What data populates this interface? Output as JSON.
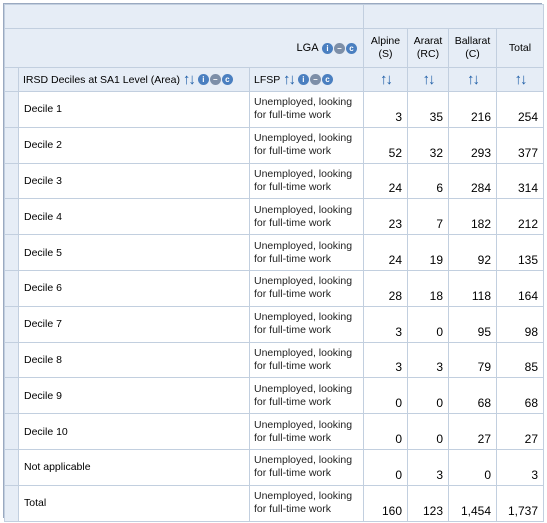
{
  "header": {
    "lga_label": "LGA",
    "row_dim_label": "IRSD Deciles at SA1 Level (Area)",
    "col_dim_label": "LFSP",
    "columns": [
      "Alpine (S)",
      "Ararat (RC)",
      "Ballarat (C)",
      "Total"
    ]
  },
  "icons": {
    "info": "i",
    "collapse": "–",
    "clear": "c",
    "sort_arrows": "↑↓"
  },
  "rows": [
    {
      "label": "Decile 1",
      "lfsp": "Unemployed, looking for full-time work",
      "values": [
        "3",
        "35",
        "216",
        "254"
      ]
    },
    {
      "label": "Decile 2",
      "lfsp": "Unemployed, looking for full-time work",
      "values": [
        "52",
        "32",
        "293",
        "377"
      ]
    },
    {
      "label": "Decile 3",
      "lfsp": "Unemployed, looking for full-time work",
      "values": [
        "24",
        "6",
        "284",
        "314"
      ]
    },
    {
      "label": "Decile 4",
      "lfsp": "Unemployed, looking for full-time work",
      "values": [
        "23",
        "7",
        "182",
        "212"
      ]
    },
    {
      "label": "Decile 5",
      "lfsp": "Unemployed, looking for full-time work",
      "values": [
        "24",
        "19",
        "92",
        "135"
      ]
    },
    {
      "label": "Decile 6",
      "lfsp": "Unemployed, looking for full-time work",
      "values": [
        "28",
        "18",
        "118",
        "164"
      ]
    },
    {
      "label": "Decile 7",
      "lfsp": "Unemployed, looking for full-time work",
      "values": [
        "3",
        "0",
        "95",
        "98"
      ]
    },
    {
      "label": "Decile 8",
      "lfsp": "Unemployed, looking for full-time work",
      "values": [
        "3",
        "3",
        "79",
        "85"
      ]
    },
    {
      "label": "Decile 9",
      "lfsp": "Unemployed, looking for full-time work",
      "values": [
        "0",
        "0",
        "68",
        "68"
      ]
    },
    {
      "label": "Decile 10",
      "lfsp": "Unemployed, looking for full-time work",
      "values": [
        "0",
        "0",
        "27",
        "27"
      ]
    },
    {
      "label": "Not applicable",
      "lfsp": "Unemployed, looking for full-time work",
      "values": [
        "0",
        "3",
        "0",
        "3"
      ]
    },
    {
      "label": "Total",
      "lfsp": "Unemployed, looking for full-time work",
      "values": [
        "160",
        "123",
        "1,454",
        "1,737"
      ]
    }
  ]
}
